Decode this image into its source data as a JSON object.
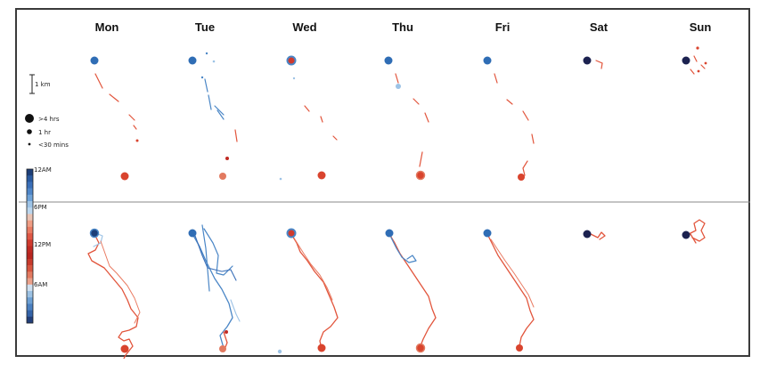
{
  "days": [
    "Mon",
    "Tue",
    "Wed",
    "Thu",
    "Fri",
    "Sat",
    "Sun"
  ],
  "scale_bar": {
    "label": "1 km"
  },
  "size_legend": [
    {
      "label": ">4 hrs"
    },
    {
      "label": "1 hr"
    },
    {
      "label": "<30 mins"
    }
  ],
  "colorbar": {
    "labels": [
      "12AM",
      "6PM",
      "12PM",
      "6AM"
    ],
    "colors": [
      "#1d3e78",
      "#2a5aa0",
      "#3a6fb8",
      "#4f86c8",
      "#6fa3d8",
      "#9dc3e6",
      "#bcd6ee",
      "#e9c3b4",
      "#ef9d84",
      "#e97b62",
      "#df5745",
      "#cf3a2e",
      "#c02a23",
      "#b8251f",
      "#c73a2c",
      "#d6553f",
      "#e27a60",
      "#eaa08a",
      "#cfe0f0",
      "#9cc1e3",
      "#6c9fd3",
      "#4b80c0",
      "#3463a8",
      "#223f7a"
    ]
  },
  "colors": {
    "home": "#2f6db5",
    "work": "#d9442e",
    "trip_red": "#e2553c",
    "trip_blue": "#4a86c6",
    "night": "#1c2250"
  }
}
